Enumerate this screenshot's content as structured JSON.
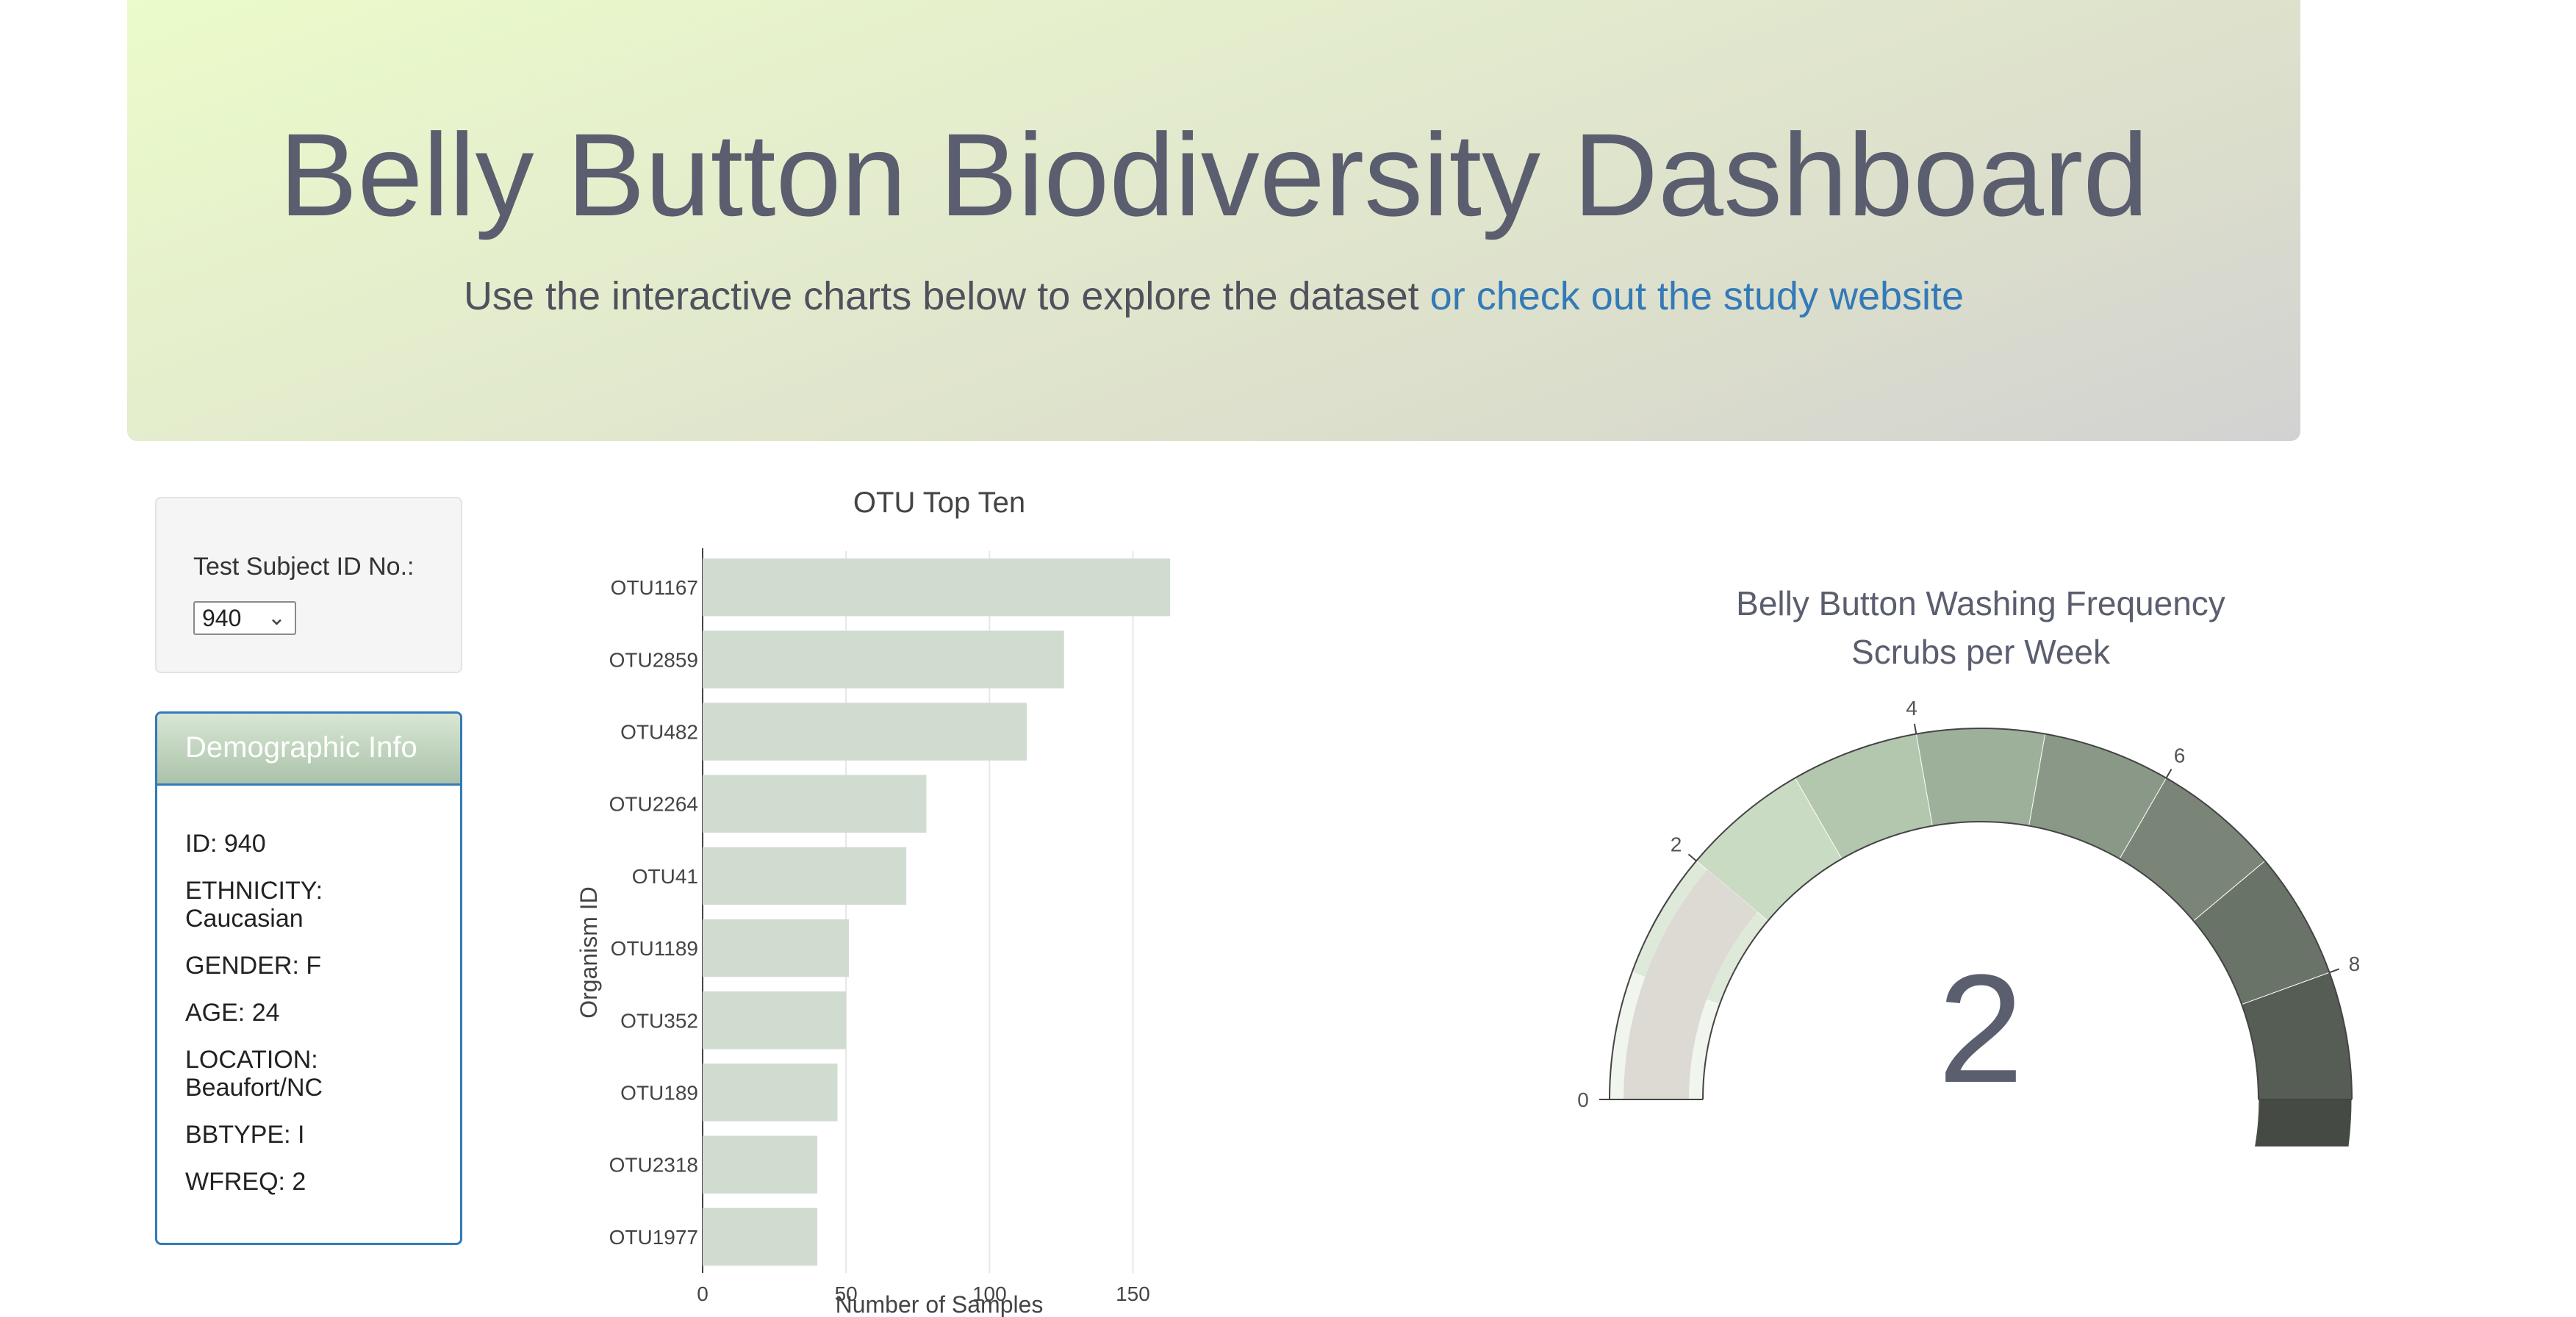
{
  "header": {
    "title": "Belly Button Biodiversity Dashboard",
    "subtitle": "Use the interactive charts below to explore the dataset",
    "link_text": "or check out the study website"
  },
  "selector": {
    "label": "Test Subject ID No.:",
    "selected": "940"
  },
  "demographics": {
    "heading": "Demographic Info",
    "items": [
      "ID: 940",
      "ETHNICITY: Caucasian",
      "GENDER: F",
      "AGE: 24",
      "LOCATION: Beaufort/NC",
      "BBTYPE: I",
      "WFREQ: 2"
    ]
  },
  "chart_data": [
    {
      "type": "bar",
      "orientation": "horizontal",
      "title": "OTU Top Ten",
      "xlabel": "Number of Samples",
      "ylabel": "Organism ID",
      "categories": [
        "OTU1167",
        "OTU2859",
        "OTU482",
        "OTU2264",
        "OTU41",
        "OTU1189",
        "OTU352",
        "OTU189",
        "OTU2318",
        "OTU1977"
      ],
      "values": [
        163,
        126,
        113,
        78,
        71,
        51,
        50,
        47,
        40,
        40
      ],
      "xlim": [
        0,
        165
      ],
      "xticks": [
        0,
        50,
        100,
        150
      ],
      "grid": true,
      "bar_color": "#d1dcd0"
    },
    {
      "type": "gauge",
      "title": "Belly Button Washing Frequency",
      "subtitle": "Scrubs per Week",
      "value": 2,
      "range": [
        0,
        9
      ],
      "tick_labels": [
        "0",
        "2",
        "4",
        "6",
        "8"
      ],
      "step_colors": [
        "#f0f5ee",
        "#dfe9da",
        "#c9dbc3",
        "#b3c6ae",
        "#9db09a",
        "#8a9987",
        "#7a8578",
        "#6a7368",
        "#565d55",
        "#454b44"
      ],
      "bar_color": "#ddd9d3"
    }
  ]
}
